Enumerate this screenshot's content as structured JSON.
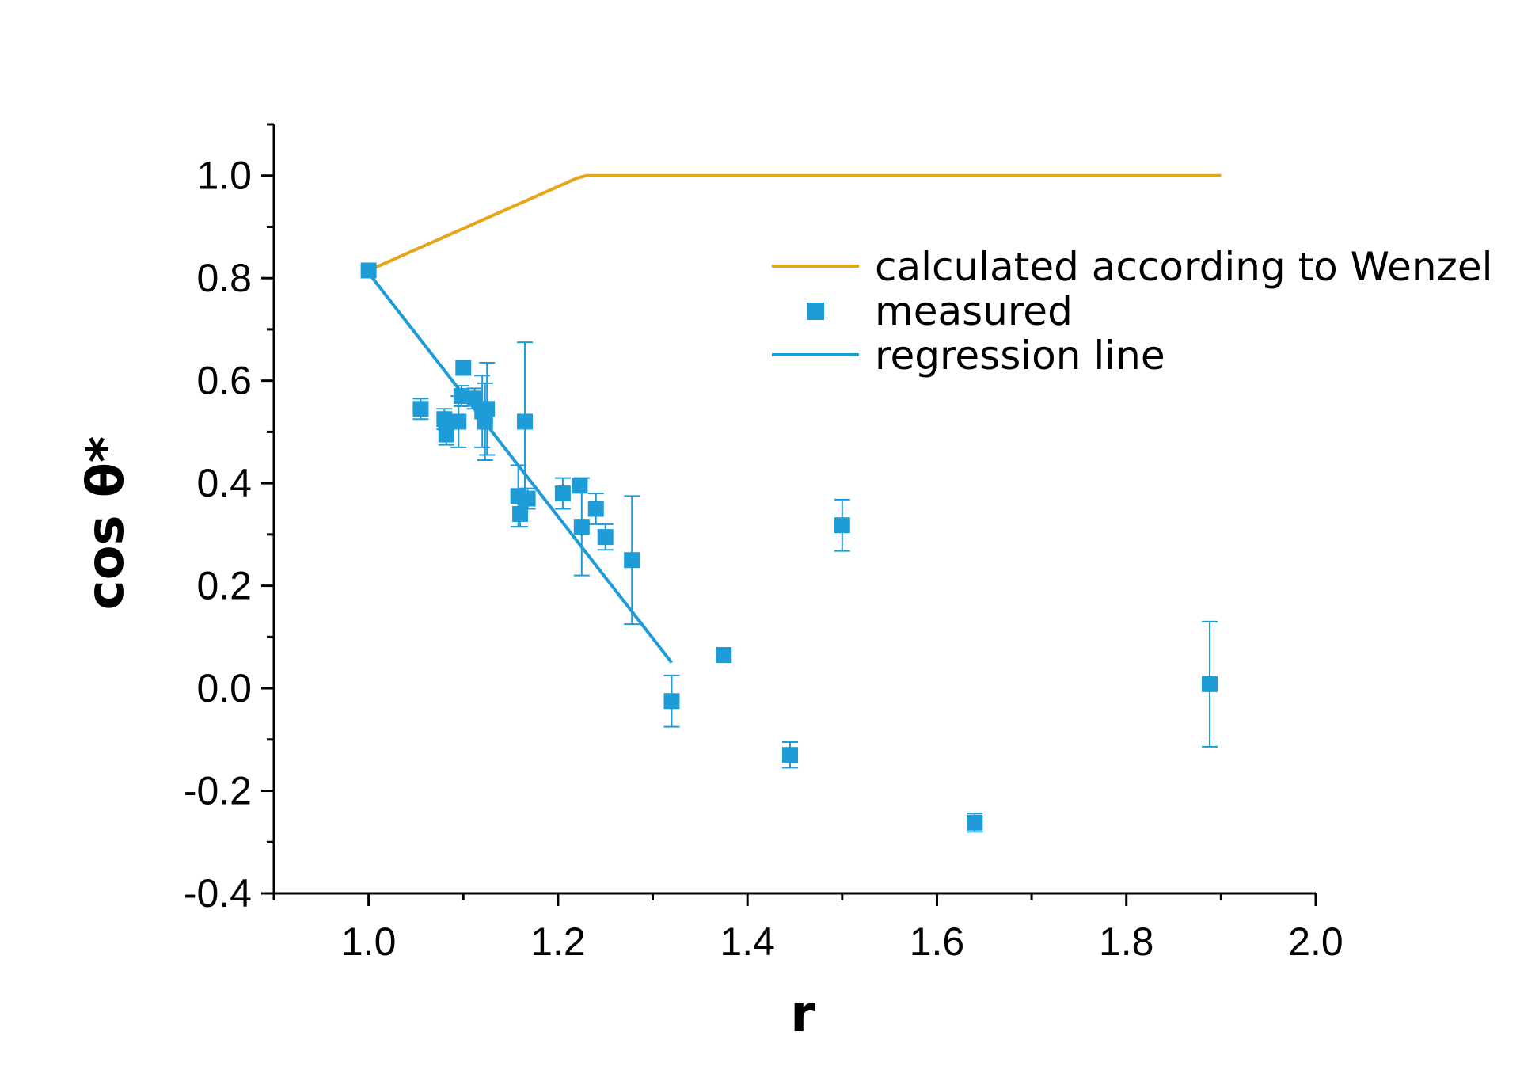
{
  "chart_data": {
    "type": "scatter",
    "title": "",
    "xlabel": "r",
    "ylabel": "cos θ*",
    "xlim": [
      0.9,
      2.0
    ],
    "ylim": [
      -0.4,
      1.1
    ],
    "x_ticks": [
      1.0,
      1.2,
      1.4,
      1.6,
      1.8,
      2.0
    ],
    "x_tick_labels": [
      "1.0",
      "1.2",
      "1.4",
      "1.6",
      "1.8",
      "2.0"
    ],
    "y_ticks": [
      -0.4,
      -0.2,
      0.0,
      0.2,
      0.4,
      0.6,
      0.8,
      1.0
    ],
    "y_tick_labels": [
      "-0.4",
      "-0.2",
      "0.0",
      "0.2",
      "0.4",
      "0.6",
      "0.8",
      "1.0"
    ],
    "grid": false,
    "legend_position": "top-right",
    "series": [
      {
        "name": "calculated according to Wenzel",
        "kind": "line",
        "color": "#E6A417",
        "points": [
          [
            1.0,
            0.815
          ],
          [
            1.22,
            0.995
          ],
          [
            1.23,
            1.0
          ],
          [
            1.9,
            1.0
          ]
        ]
      },
      {
        "name": "measured",
        "kind": "scatter",
        "color": "#1E9CD8",
        "points": [
          {
            "x": 1.0,
            "y": 0.815,
            "err": 0.0
          },
          {
            "x": 1.055,
            "y": 0.545,
            "err": 0.02
          },
          {
            "x": 1.08,
            "y": 0.525,
            "err": 0.02
          },
          {
            "x": 1.082,
            "y": 0.495,
            "err": 0.02
          },
          {
            "x": 1.095,
            "y": 0.52,
            "err": 0.05
          },
          {
            "x": 1.098,
            "y": 0.57,
            "err": 0.02
          },
          {
            "x": 1.1,
            "y": 0.625,
            "err": 0.0
          },
          {
            "x": 1.112,
            "y": 0.565,
            "err": 0.02
          },
          {
            "x": 1.12,
            "y": 0.54,
            "err": 0.07
          },
          {
            "x": 1.123,
            "y": 0.52,
            "err": 0.075
          },
          {
            "x": 1.125,
            "y": 0.545,
            "err": 0.09
          },
          {
            "x": 1.158,
            "y": 0.375,
            "err": 0.06
          },
          {
            "x": 1.16,
            "y": 0.34,
            "err": 0.025
          },
          {
            "x": 1.165,
            "y": 0.52,
            "err": 0.155
          },
          {
            "x": 1.168,
            "y": 0.37,
            "err": 0.02
          },
          {
            "x": 1.205,
            "y": 0.38,
            "err": 0.03
          },
          {
            "x": 1.223,
            "y": 0.395,
            "err": 0.0
          },
          {
            "x": 1.225,
            "y": 0.315,
            "err": 0.095
          },
          {
            "x": 1.24,
            "y": 0.35,
            "err": 0.03
          },
          {
            "x": 1.25,
            "y": 0.295,
            "err": 0.025
          },
          {
            "x": 1.278,
            "y": 0.25,
            "err": 0.125
          },
          {
            "x": 1.32,
            "y": -0.025,
            "err": 0.05
          },
          {
            "x": 1.375,
            "y": 0.065,
            "err": 0.0
          },
          {
            "x": 1.445,
            "y": -0.13,
            "err": 0.025
          },
          {
            "x": 1.5,
            "y": 0.318,
            "err": 0.05
          },
          {
            "x": 1.64,
            "y": -0.262,
            "err": 0.018
          },
          {
            "x": 1.888,
            "y": 0.008,
            "err": 0.122
          }
        ]
      },
      {
        "name": "regression line",
        "kind": "line",
        "color": "#1E9CD8",
        "points": [
          [
            1.0,
            0.81
          ],
          [
            1.32,
            0.05
          ]
        ]
      }
    ]
  }
}
